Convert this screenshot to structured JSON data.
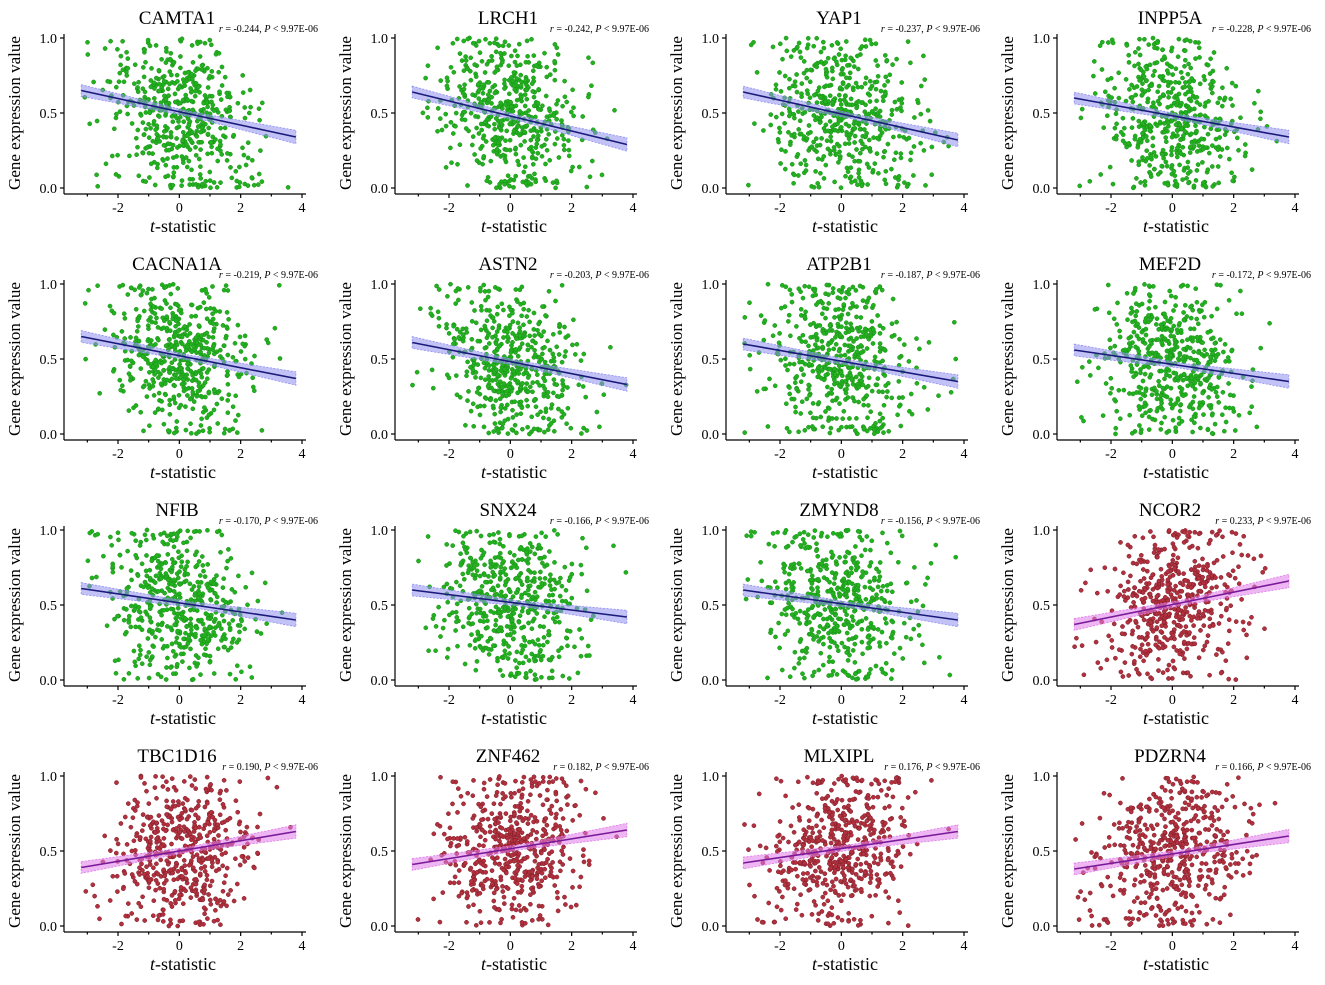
{
  "figure": {
    "xlabel_italic": "t",
    "xlabel_rest": "-statistic",
    "ylabel": "Gene expression value",
    "colors": {
      "negative_points": "#22b11f",
      "negative_points_edge": "#1b8e18",
      "negative_band": "#8f8ff0",
      "negative_line": "#1a1a7a",
      "positive_points": "#b2313f",
      "positive_points_edge": "#7d1a26",
      "positive_band": "#e07ae8",
      "positive_line": "#7a1a9a"
    }
  },
  "chart_data": [
    {
      "type": "scatter",
      "title": "CAMTA1",
      "r": "-0.244",
      "p": "9.97E-06",
      "sign": "negative",
      "xlim": [
        -3.5,
        4
      ],
      "ylim": [
        0,
        1
      ],
      "xticks": [
        "-2",
        "0",
        "2",
        "4"
      ],
      "yticks": [
        "0.0",
        "0.5",
        "1.0"
      ],
      "fit": {
        "x": [
          -3.2,
          3.8
        ],
        "y": [
          0.65,
          0.34
        ]
      }
    },
    {
      "type": "scatter",
      "title": "LRCH1",
      "r": "-0.242",
      "p": "9.97E-06",
      "sign": "negative",
      "xlim": [
        -3.5,
        4
      ],
      "ylim": [
        0,
        1
      ],
      "xticks": [
        "-2",
        "0",
        "2",
        "4"
      ],
      "yticks": [
        "0.0",
        "0.5",
        "1.0"
      ],
      "fit": {
        "x": [
          -3.2,
          3.8
        ],
        "y": [
          0.64,
          0.29
        ]
      }
    },
    {
      "type": "scatter",
      "title": "YAP1",
      "r": "-0.237",
      "p": "9.97E-06",
      "sign": "negative",
      "xlim": [
        -3.5,
        4
      ],
      "ylim": [
        0,
        1
      ],
      "xticks": [
        "-2",
        "0",
        "2",
        "4"
      ],
      "yticks": [
        "0.0",
        "0.5",
        "1.0"
      ],
      "fit": {
        "x": [
          -3.2,
          3.8
        ],
        "y": [
          0.64,
          0.32
        ]
      }
    },
    {
      "type": "scatter",
      "title": "INPP5A",
      "r": "-0.228",
      "p": "9.97E-06",
      "sign": "negative",
      "xlim": [
        -3.5,
        4
      ],
      "ylim": [
        0,
        1
      ],
      "xticks": [
        "-2",
        "0",
        "2",
        "4"
      ],
      "yticks": [
        "0.0",
        "0.5",
        "1.0"
      ],
      "fit": {
        "x": [
          -3.2,
          3.8
        ],
        "y": [
          0.6,
          0.34
        ]
      }
    },
    {
      "type": "scatter",
      "title": "CACNA1A",
      "r": "-0.219",
      "p": "9.97E-06",
      "sign": "negative",
      "xlim": [
        -3.5,
        4
      ],
      "ylim": [
        0,
        1
      ],
      "xticks": [
        "-2",
        "0",
        "2",
        "4"
      ],
      "yticks": [
        "0.0",
        "0.5",
        "1.0"
      ],
      "fit": {
        "x": [
          -3.2,
          3.8
        ],
        "y": [
          0.65,
          0.37
        ]
      }
    },
    {
      "type": "scatter",
      "title": "ASTN2",
      "r": "-0.203",
      "p": "9.97E-06",
      "sign": "negative",
      "xlim": [
        -3.5,
        4
      ],
      "ylim": [
        0,
        1
      ],
      "xticks": [
        "-2",
        "0",
        "2",
        "4"
      ],
      "yticks": [
        "0.0",
        "0.5",
        "1.0"
      ],
      "fit": {
        "x": [
          -3.2,
          3.8
        ],
        "y": [
          0.61,
          0.33
        ]
      }
    },
    {
      "type": "scatter",
      "title": "ATP2B1",
      "r": "-0.187",
      "p": "9.97E-06",
      "sign": "negative",
      "xlim": [
        -3.5,
        4
      ],
      "ylim": [
        0,
        1
      ],
      "xticks": [
        "-2",
        "0",
        "2",
        "4"
      ],
      "yticks": [
        "0.0",
        "0.5",
        "1.0"
      ],
      "fit": {
        "x": [
          -3.2,
          3.8
        ],
        "y": [
          0.6,
          0.35
        ]
      }
    },
    {
      "type": "scatter",
      "title": "MEF2D",
      "r": "-0.172",
      "p": "9.97E-06",
      "sign": "negative",
      "xlim": [
        -3.5,
        4
      ],
      "ylim": [
        0,
        1
      ],
      "xticks": [
        "-2",
        "0",
        "2",
        "4"
      ],
      "yticks": [
        "0.0",
        "0.5",
        "1.0"
      ],
      "fit": {
        "x": [
          -3.2,
          3.8
        ],
        "y": [
          0.56,
          0.35
        ]
      }
    },
    {
      "type": "scatter",
      "title": "NFIB",
      "r": "-0.170",
      "p": "9.97E-06",
      "sign": "negative",
      "xlim": [
        -3.5,
        4
      ],
      "ylim": [
        0,
        1
      ],
      "xticks": [
        "-2",
        "0",
        "2",
        "4"
      ],
      "yticks": [
        "0.0",
        "0.5",
        "1.0"
      ],
      "fit": {
        "x": [
          -3.2,
          3.8
        ],
        "y": [
          0.61,
          0.4
        ]
      }
    },
    {
      "type": "scatter",
      "title": "SNX24",
      "r": "-0.166",
      "p": "9.97E-06",
      "sign": "negative",
      "xlim": [
        -3.5,
        4
      ],
      "ylim": [
        0,
        1
      ],
      "xticks": [
        "-2",
        "0",
        "2",
        "4"
      ],
      "yticks": [
        "0.0",
        "0.5",
        "1.0"
      ],
      "fit": {
        "x": [
          -3.2,
          3.8
        ],
        "y": [
          0.6,
          0.42
        ]
      }
    },
    {
      "type": "scatter",
      "title": "ZMYND8",
      "r": "-0.156",
      "p": "9.97E-06",
      "sign": "negative",
      "xlim": [
        -3.5,
        4
      ],
      "ylim": [
        0,
        1
      ],
      "xticks": [
        "-2",
        "0",
        "2",
        "4"
      ],
      "yticks": [
        "0.0",
        "0.5",
        "1.0"
      ],
      "fit": {
        "x": [
          -3.2,
          3.8
        ],
        "y": [
          0.6,
          0.4
        ]
      }
    },
    {
      "type": "scatter",
      "title": "NCOR2",
      "r": "0.233",
      "p": "9.97E-06",
      "sign": "positive",
      "xlim": [
        -3.5,
        4
      ],
      "ylim": [
        0,
        1
      ],
      "xticks": [
        "-2",
        "0",
        "2",
        "4"
      ],
      "yticks": [
        "0.0",
        "0.5",
        "1.0"
      ],
      "fit": {
        "x": [
          -3.2,
          3.8
        ],
        "y": [
          0.37,
          0.66
        ]
      }
    },
    {
      "type": "scatter",
      "title": "TBC1D16",
      "r": "0.190",
      "p": "9.97E-06",
      "sign": "positive",
      "xlim": [
        -3.5,
        4
      ],
      "ylim": [
        0,
        1
      ],
      "xticks": [
        "-2",
        "0",
        "2",
        "4"
      ],
      "yticks": [
        "0.0",
        "0.5",
        "1.0"
      ],
      "fit": {
        "x": [
          -3.2,
          3.8
        ],
        "y": [
          0.39,
          0.63
        ]
      }
    },
    {
      "type": "scatter",
      "title": "ZNF462",
      "r": "0.182",
      "p": "9.97E-06",
      "sign": "positive",
      "xlim": [
        -3.5,
        4
      ],
      "ylim": [
        0,
        1
      ],
      "xticks": [
        "-2",
        "0",
        "2",
        "4"
      ],
      "yticks": [
        "0.0",
        "0.5",
        "1.0"
      ],
      "fit": {
        "x": [
          -3.2,
          3.8
        ],
        "y": [
          0.41,
          0.64
        ]
      }
    },
    {
      "type": "scatter",
      "title": "MLXIPL",
      "r": "0.176",
      "p": "9.97E-06",
      "sign": "positive",
      "xlim": [
        -3.5,
        4
      ],
      "ylim": [
        0,
        1
      ],
      "xticks": [
        "-2",
        "0",
        "2",
        "4"
      ],
      "yticks": [
        "0.0",
        "0.5",
        "1.0"
      ],
      "fit": {
        "x": [
          -3.2,
          3.8
        ],
        "y": [
          0.42,
          0.63
        ]
      }
    },
    {
      "type": "scatter",
      "title": "PDZRN4",
      "r": "0.166",
      "p": "9.97E-06",
      "sign": "positive",
      "xlim": [
        -3.5,
        4
      ],
      "ylim": [
        0,
        1
      ],
      "xticks": [
        "-2",
        "0",
        "2",
        "4"
      ],
      "yticks": [
        "0.0",
        "0.5",
        "1.0"
      ],
      "fit": {
        "x": [
          -3.2,
          3.8
        ],
        "y": [
          0.38,
          0.6
        ]
      }
    }
  ]
}
